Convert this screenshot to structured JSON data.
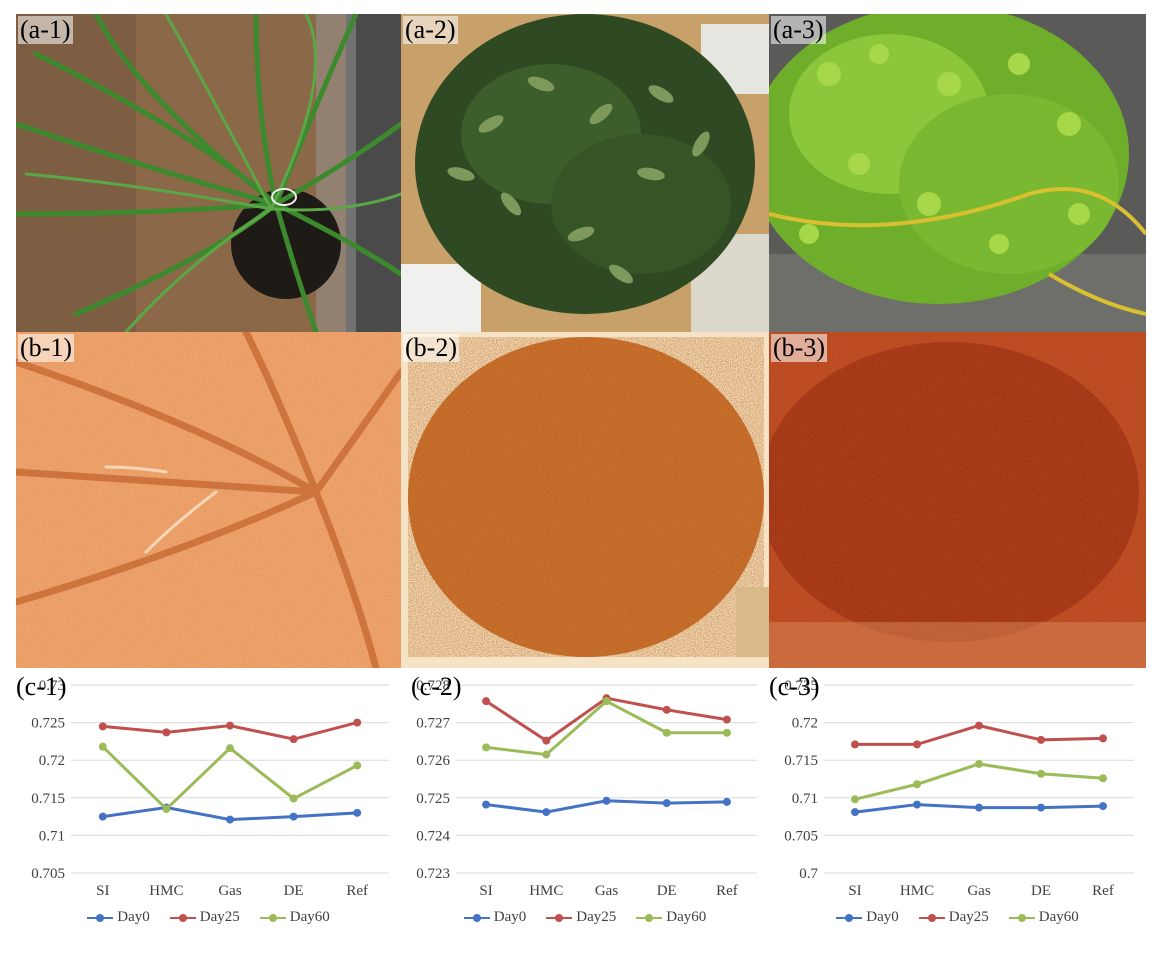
{
  "colors": {
    "day0": "#4472C4",
    "day25": "#C0504D",
    "day60": "#9BBB59"
  },
  "photos": {
    "labels": [
      "(a-1)",
      "(a-2)",
      "(a-3)"
    ],
    "descriptions_icons": [
      "plant-photo-grass",
      "plant-photo-shrub",
      "plant-photo-leafy"
    ]
  },
  "maps": {
    "labels": [
      "(b-1)",
      "(b-2)",
      "(b-3)"
    ]
  },
  "chart_data": [
    {
      "type": "line",
      "panel_label": "(c-1)",
      "categories": [
        "SI",
        "HMC",
        "Gas",
        "DE",
        "Ref"
      ],
      "ylim": [
        0.705,
        0.73
      ],
      "yticks": [
        "0.705",
        "0.71",
        "0.715",
        "0.72",
        "0.725",
        "0.73"
      ],
      "grid": true,
      "legend": "bottom",
      "series": [
        {
          "name": "Day0",
          "values": [
            0.7125,
            0.7137,
            0.7121,
            0.7125,
            0.713
          ]
        },
        {
          "name": "Day25",
          "values": [
            0.7245,
            0.7237,
            0.7246,
            0.7228,
            0.725
          ]
        },
        {
          "name": "Day60",
          "values": [
            0.7218,
            0.7135,
            0.7216,
            0.7149,
            0.7193
          ]
        }
      ]
    },
    {
      "type": "line",
      "panel_label": "(c-2)",
      "categories": [
        "SI",
        "HMC",
        "Gas",
        "DE",
        "Ref"
      ],
      "ylim": [
        0.723,
        0.728
      ],
      "yticks": [
        "0.723",
        "0.724",
        "0.725",
        "0.726",
        "0.727",
        "0.728"
      ],
      "grid": true,
      "legend": "bottom",
      "series": [
        {
          "name": "Day0",
          "values": [
            0.72482,
            0.72462,
            0.72492,
            0.72486,
            0.72489
          ]
        },
        {
          "name": "Day25",
          "values": [
            0.72757,
            0.72652,
            0.72765,
            0.72734,
            0.72708
          ]
        },
        {
          "name": "Day60",
          "values": [
            0.72634,
            0.72615,
            0.72757,
            0.72673,
            0.72673
          ]
        }
      ]
    },
    {
      "type": "line",
      "panel_label": "(c-3)",
      "categories": [
        "SI",
        "HMC",
        "Gas",
        "DE",
        "Ref"
      ],
      "ylim": [
        0.7,
        0.725
      ],
      "yticks": [
        "0.7",
        "0.705",
        "0.71",
        "0.715",
        "0.72",
        "0.725"
      ],
      "grid": true,
      "legend": "bottom",
      "series": [
        {
          "name": "Day0",
          "values": [
            0.7081,
            0.7091,
            0.7087,
            0.7087,
            0.7089
          ]
        },
        {
          "name": "Day25",
          "values": [
            0.7171,
            0.7171,
            0.7196,
            0.7177,
            0.7179
          ]
        },
        {
          "name": "Day60",
          "values": [
            0.7098,
            0.7118,
            0.7145,
            0.7132,
            0.7126
          ]
        }
      ]
    }
  ]
}
